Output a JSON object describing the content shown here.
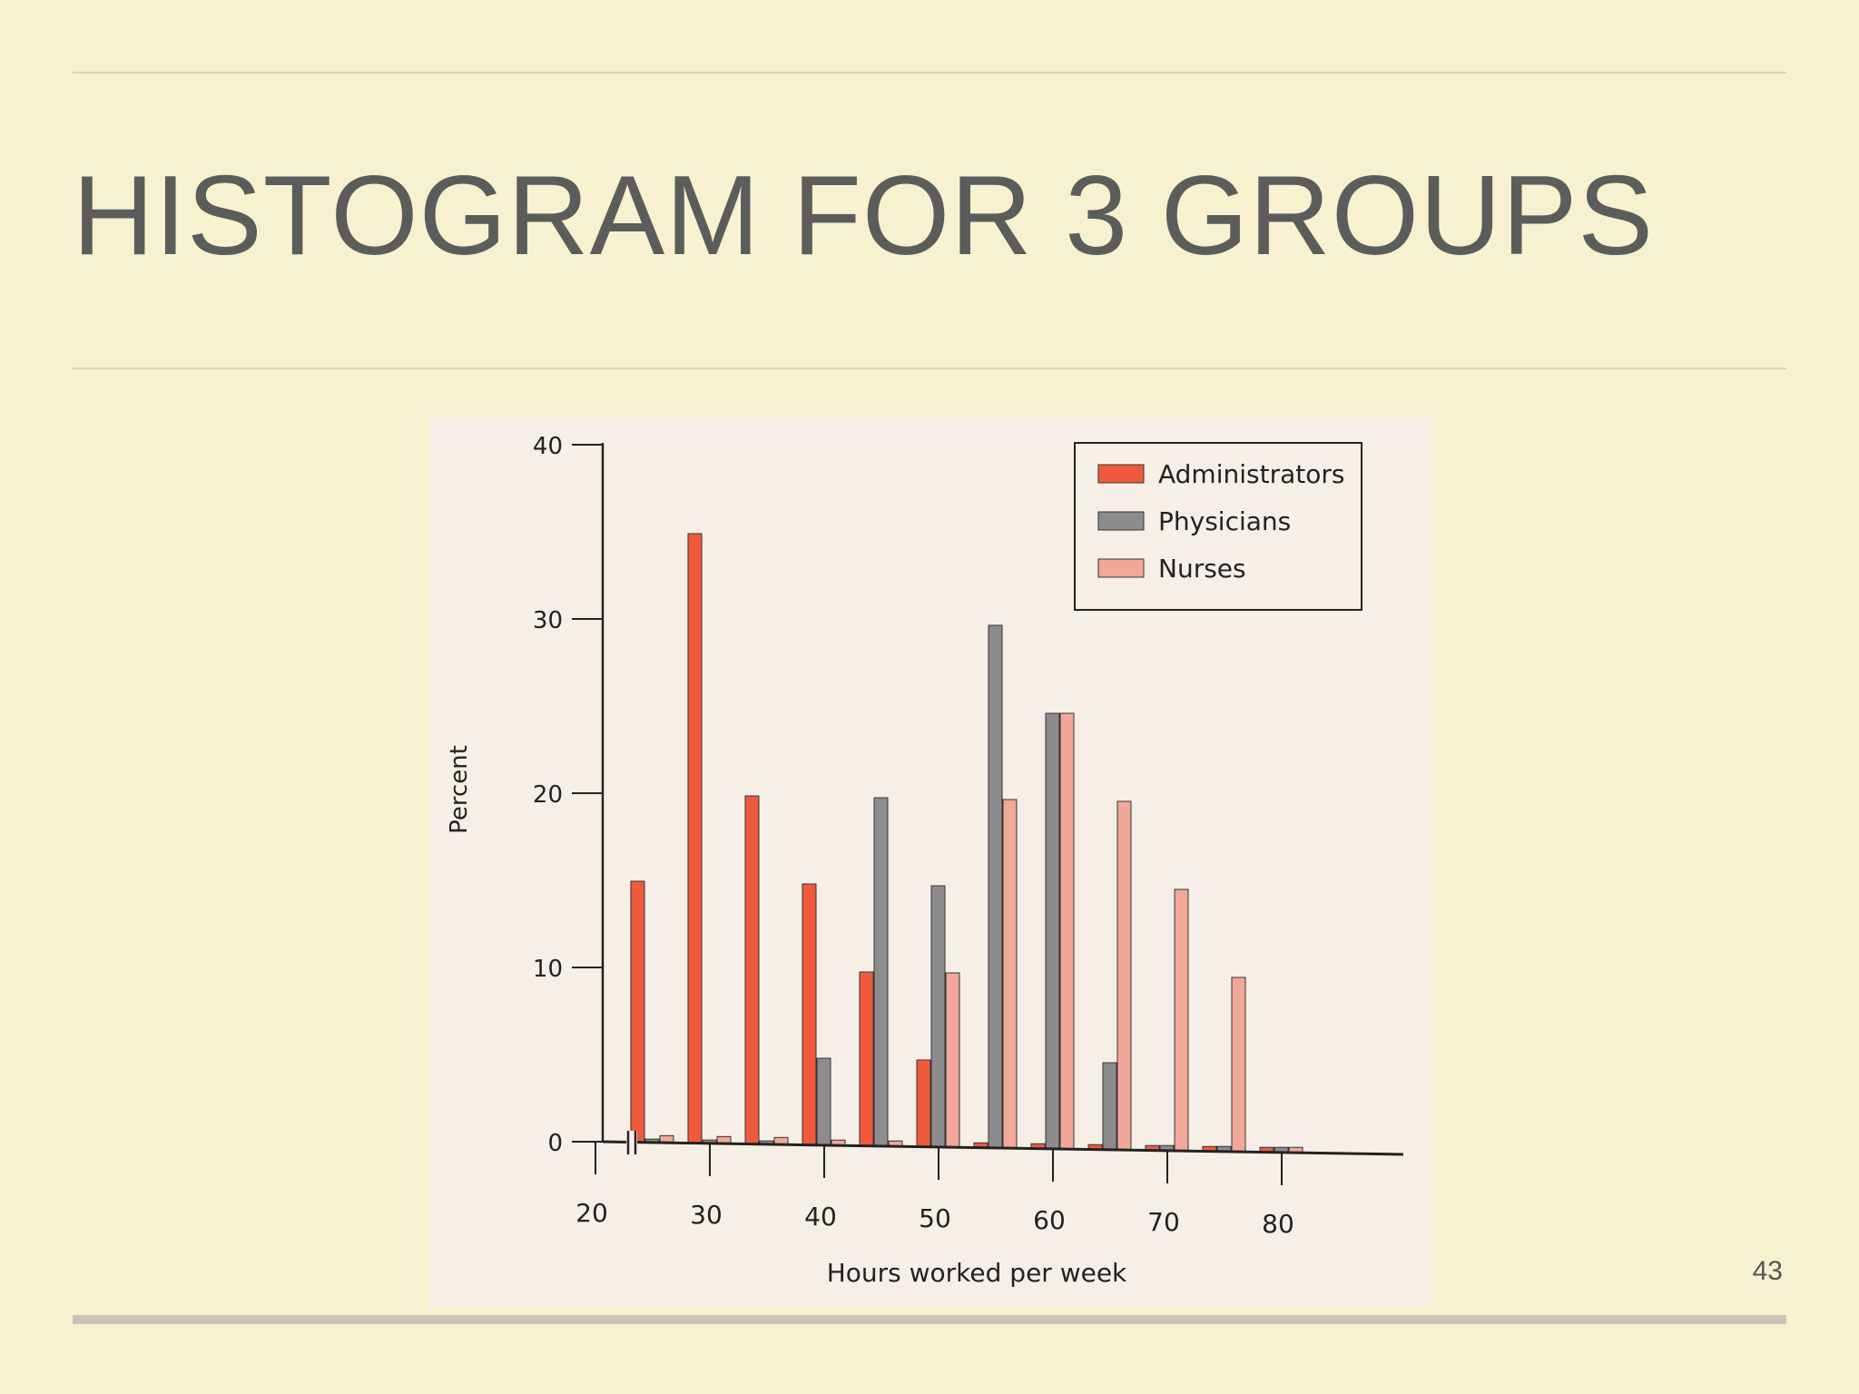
{
  "slide": {
    "title": "HISTOGRAM FOR 3 GROUPS",
    "page_number": "43"
  },
  "chart_data": {
    "type": "bar",
    "title": "",
    "xlabel": "Hours worked per week",
    "ylabel": "Percent",
    "xlim": [
      15,
      85
    ],
    "ylim": [
      0,
      40
    ],
    "x_ticks": [
      20,
      30,
      40,
      50,
      60,
      70,
      80
    ],
    "x_tick_labels": [
      "20",
      "30",
      "40",
      "50",
      "60",
      "70",
      "80"
    ],
    "y_ticks": [
      0,
      10,
      20,
      30,
      40
    ],
    "y_tick_labels": [
      "0",
      "10",
      "20",
      "30",
      "40"
    ],
    "axis_break": true,
    "grid": false,
    "legend_position": "top-right",
    "categories": [
      25,
      30,
      35,
      40,
      45,
      50,
      55,
      60,
      65,
      70,
      75,
      80
    ],
    "series": [
      {
        "name": "Administrators",
        "color": "#f05a3c",
        "values": [
          15,
          35,
          20,
          15,
          10,
          5,
          0.3,
          0.3,
          0.3,
          0.3,
          0.3,
          0.3
        ]
      },
      {
        "name": "Physicians",
        "color": "#8c8c8c",
        "values": [
          0.2,
          0.2,
          0.2,
          5,
          20,
          15,
          30,
          25,
          5,
          0.3,
          0.3,
          0.3
        ]
      },
      {
        "name": "Nurses",
        "color": "#f2a898",
        "values": [
          0.4,
          0.4,
          0.4,
          0.3,
          0.3,
          10,
          20,
          25,
          20,
          15,
          10,
          0.3
        ]
      }
    ]
  }
}
